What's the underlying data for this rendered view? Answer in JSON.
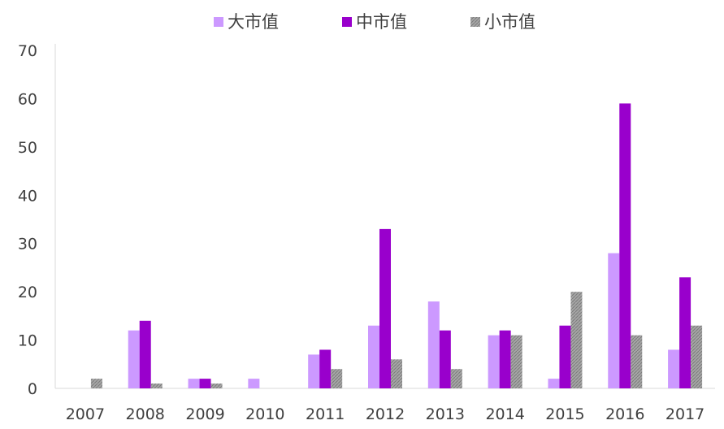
{
  "chart_data": {
    "type": "bar",
    "categories": [
      "2007",
      "2008",
      "2009",
      "2010",
      "2011",
      "2012",
      "2013",
      "2014",
      "2015",
      "2016",
      "2017"
    ],
    "series": [
      {
        "name": "大市值",
        "color": "#cc99ff",
        "values": [
          0,
          12,
          2,
          2,
          7,
          13,
          18,
          11,
          2,
          28,
          8
        ]
      },
      {
        "name": "中市值",
        "color": "#9900cc",
        "values": [
          0,
          14,
          2,
          0,
          8,
          33,
          12,
          12,
          13,
          59,
          23
        ]
      },
      {
        "name": "小市值",
        "color": "#a6a6a6",
        "values": [
          2,
          1,
          1,
          0,
          4,
          6,
          4,
          11,
          20,
          11,
          13
        ]
      }
    ],
    "ylim": [
      0,
      70
    ],
    "yticks": [
      "0",
      "10",
      "20",
      "30",
      "40",
      "50",
      "60",
      "70"
    ],
    "grid": false,
    "legend_position": "top",
    "title": "",
    "xlabel": "",
    "ylabel": ""
  }
}
